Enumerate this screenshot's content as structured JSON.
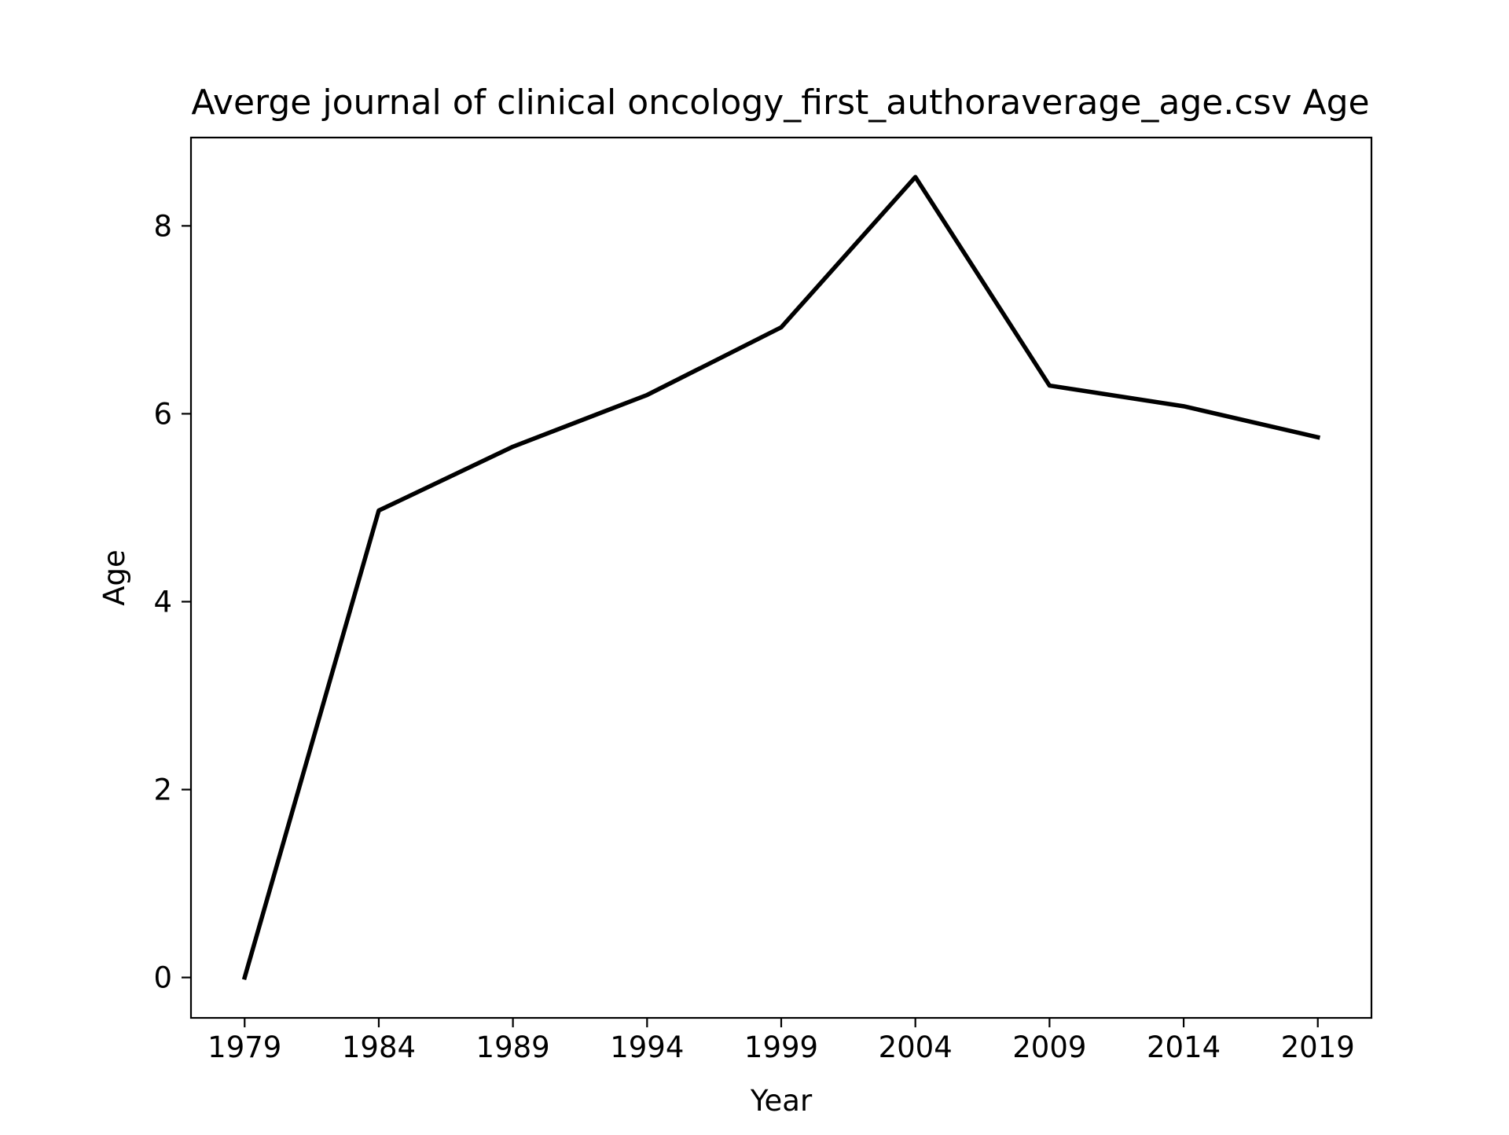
{
  "chart_data": {
    "type": "line",
    "title": "Averge journal of clinical oncology_first_authoraverage_age.csv Age",
    "xlabel": "Year",
    "ylabel": "Age",
    "x": [
      1979,
      1984,
      1989,
      1994,
      1999,
      2004,
      2009,
      2014,
      2019
    ],
    "x_ticks": [
      "1979",
      "1984",
      "1989",
      "1994",
      "1999",
      "2004",
      "2009",
      "2014",
      "2019"
    ],
    "y_ticks": [
      "0",
      "2",
      "4",
      "6",
      "8"
    ],
    "series": [
      {
        "values": [
          0.0,
          4.97,
          5.65,
          6.2,
          6.92,
          8.52,
          6.3,
          6.08,
          5.75
        ],
        "color": "#000000"
      }
    ],
    "xlim": [
      1977.0,
      2021.0
    ],
    "ylim": [
      -0.43,
      8.94
    ],
    "grid": false,
    "legend": "none"
  }
}
